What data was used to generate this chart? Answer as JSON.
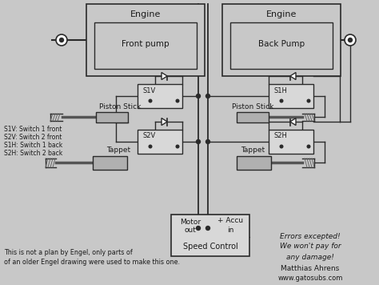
{
  "bg_color": "#c8c8c8",
  "line_color": "#2a2a2a",
  "box_color": "#d8d8d8",
  "text_color": "#1a1a1a",
  "title_note1": "This is not a plan by Engel, only parts of",
  "title_note2": "of an older Engel drawing were used to make this one.",
  "error_note1": "Errors excepted!",
  "error_note2": "We won't pay for",
  "error_note3": "any damage!",
  "author": "Matthias Ahrens",
  "website": "www.gatosubs.com",
  "legend1": "S1V: Switch 1 front",
  "legend2": "S2V: Switch 2 front",
  "legend3": "S1H: Switch 1 back",
  "legend4": "S2H: Switch 2 back"
}
